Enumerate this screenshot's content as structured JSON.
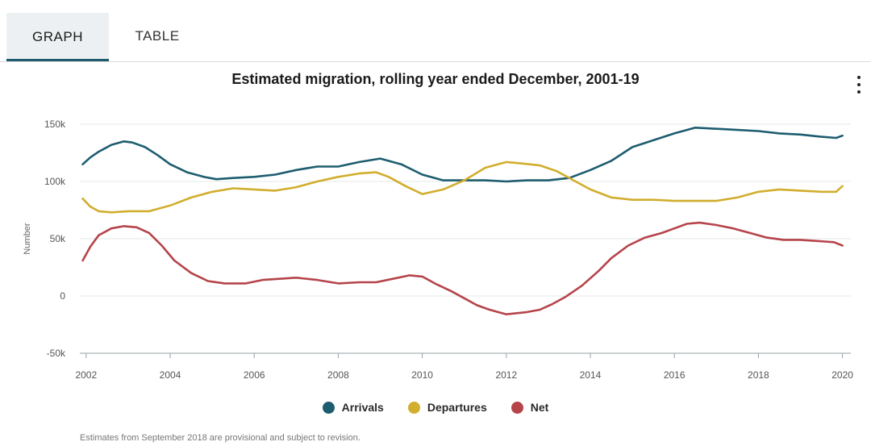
{
  "tabs": [
    {
      "label": "GRAPH",
      "active": true
    },
    {
      "label": "TABLE",
      "active": false
    }
  ],
  "menu_icon": "kebab-menu-icon",
  "footnote": "Estimates from September 2018 are provisional and subject to revision.",
  "chart_data": {
    "type": "line",
    "title": "Estimated migration, rolling year ended December, 2001-19",
    "xlabel": "",
    "ylabel": "Number",
    "xlim": [
      2001.85,
      2020.2
    ],
    "ylim": [
      -50000,
      150000
    ],
    "x_ticks": [
      2002,
      2004,
      2006,
      2008,
      2010,
      2012,
      2014,
      2016,
      2018,
      2020
    ],
    "x_tick_labels": [
      "2002",
      "2004",
      "2006",
      "2008",
      "2010",
      "2012",
      "2014",
      "2016",
      "2018",
      "2020"
    ],
    "y_ticks": [
      -50000,
      0,
      50000,
      100000,
      150000
    ],
    "y_tick_labels": [
      "-50k",
      "0",
      "50k",
      "100k",
      "150k"
    ],
    "grid": "horizontal",
    "legend_position": "bottom",
    "series": [
      {
        "name": "Arrivals",
        "color": "#1d5d6f",
        "x": [
          2001.92,
          2002.1,
          2002.3,
          2002.6,
          2002.9,
          2003.1,
          2003.4,
          2003.7,
          2004.0,
          2004.4,
          2004.8,
          2005.1,
          2005.5,
          2006.0,
          2006.5,
          2007.0,
          2007.5,
          2008.0,
          2008.5,
          2009.0,
          2009.5,
          2010.0,
          2010.5,
          2011.0,
          2011.5,
          2012.0,
          2012.5,
          2013.0,
          2013.5,
          2014.0,
          2014.5,
          2015.0,
          2015.5,
          2016.0,
          2016.5,
          2017.0,
          2017.5,
          2018.0,
          2018.5,
          2019.0,
          2019.5,
          2019.85,
          2020.0
        ],
        "values": [
          115000,
          121000,
          126000,
          132000,
          135000,
          134000,
          130000,
          123000,
          115000,
          108000,
          104000,
          102000,
          103000,
          104000,
          106000,
          110000,
          113000,
          113000,
          117000,
          120000,
          115000,
          106000,
          101000,
          101000,
          101000,
          100000,
          101000,
          101000,
          103000,
          110000,
          118000,
          130000,
          136000,
          142000,
          147000,
          146000,
          145000,
          144000,
          142000,
          141000,
          139000,
          138000,
          140000
        ]
      },
      {
        "name": "Departures",
        "color": "#d1ae2d",
        "x": [
          2001.92,
          2002.1,
          2002.3,
          2002.6,
          2003.0,
          2003.5,
          2004.0,
          2004.5,
          2005.0,
          2005.5,
          2006.0,
          2006.5,
          2007.0,
          2007.5,
          2008.0,
          2008.5,
          2008.9,
          2009.2,
          2009.6,
          2010.0,
          2010.5,
          2011.0,
          2011.5,
          2012.0,
          2012.3,
          2012.8,
          2013.2,
          2013.6,
          2014.0,
          2014.5,
          2015.0,
          2015.5,
          2016.0,
          2016.5,
          2017.0,
          2017.5,
          2018.0,
          2018.5,
          2019.0,
          2019.5,
          2019.85,
          2020.0
        ],
        "values": [
          85000,
          78000,
          74000,
          73000,
          74000,
          74000,
          79000,
          86000,
          91000,
          94000,
          93000,
          92000,
          95000,
          100000,
          104000,
          107000,
          108000,
          104000,
          96000,
          89000,
          93000,
          101000,
          112000,
          117000,
          116000,
          114000,
          109000,
          101000,
          93000,
          86000,
          84000,
          84000,
          83000,
          83000,
          83000,
          86000,
          91000,
          93000,
          92000,
          91000,
          91000,
          96000
        ]
      },
      {
        "name": "Net",
        "color": "#b5444b",
        "x": [
          2001.92,
          2002.1,
          2002.3,
          2002.6,
          2002.9,
          2003.2,
          2003.5,
          2003.8,
          2004.1,
          2004.5,
          2004.9,
          2005.3,
          2005.8,
          2006.2,
          2006.6,
          2007.0,
          2007.5,
          2008.0,
          2008.5,
          2008.9,
          2009.3,
          2009.7,
          2010.0,
          2010.3,
          2010.7,
          2011.0,
          2011.3,
          2011.6,
          2012.0,
          2012.5,
          2012.8,
          2013.1,
          2013.4,
          2013.8,
          2014.2,
          2014.5,
          2014.9,
          2015.3,
          2015.7,
          2016.0,
          2016.3,
          2016.6,
          2017.0,
          2017.4,
          2017.8,
          2018.2,
          2018.6,
          2019.0,
          2019.4,
          2019.8,
          2020.0
        ],
        "values": [
          31000,
          43000,
          53000,
          59000,
          61000,
          60000,
          55000,
          44000,
          31000,
          20000,
          13000,
          11000,
          11000,
          14000,
          15000,
          16000,
          14000,
          11000,
          12000,
          12000,
          15000,
          18000,
          17000,
          11000,
          4000,
          -2000,
          -8000,
          -12000,
          -16000,
          -14000,
          -12000,
          -7000,
          -1000,
          9000,
          22000,
          33000,
          44000,
          51000,
          55000,
          59000,
          63000,
          64000,
          62000,
          59000,
          55000,
          51000,
          49000,
          49000,
          48000,
          47000,
          44000
        ]
      }
    ]
  }
}
